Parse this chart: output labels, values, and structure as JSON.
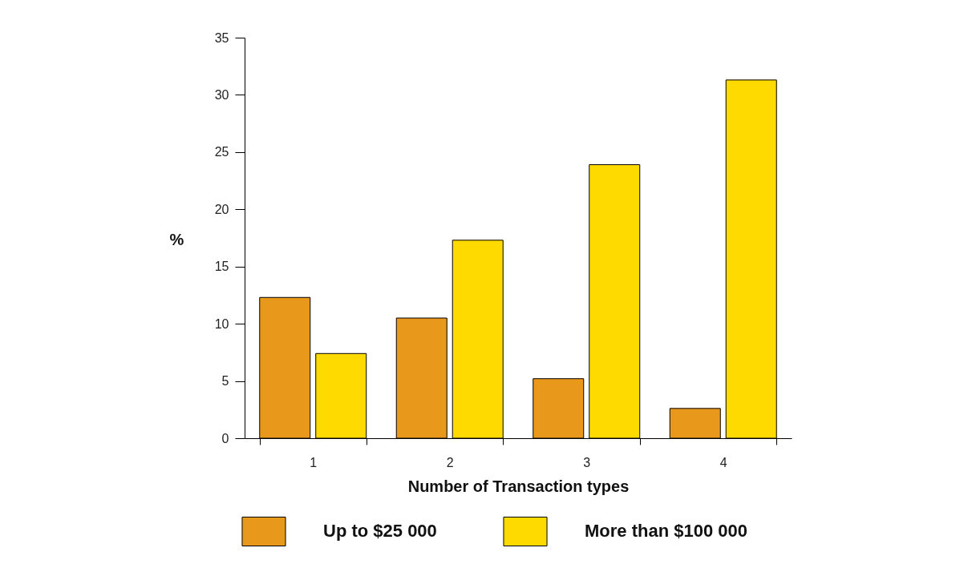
{
  "chart_data": {
    "type": "bar",
    "xlabel": "Number of Transaction types",
    "ylabel": "%",
    "categories": [
      "1",
      "2",
      "3",
      "4"
    ],
    "series": [
      {
        "name": "Up to $25 000",
        "color": "#e8991c",
        "values": [
          12.3,
          10.5,
          5.2,
          2.6
        ]
      },
      {
        "name": "More than $100 000",
        "color": "#ffda00",
        "values": [
          7.4,
          17.3,
          23.9,
          31.3
        ]
      }
    ],
    "ylim": [
      0,
      35
    ],
    "yticks": [
      0,
      5,
      10,
      15,
      20,
      25,
      30,
      35
    ],
    "grid": false,
    "legend": "bottom"
  }
}
